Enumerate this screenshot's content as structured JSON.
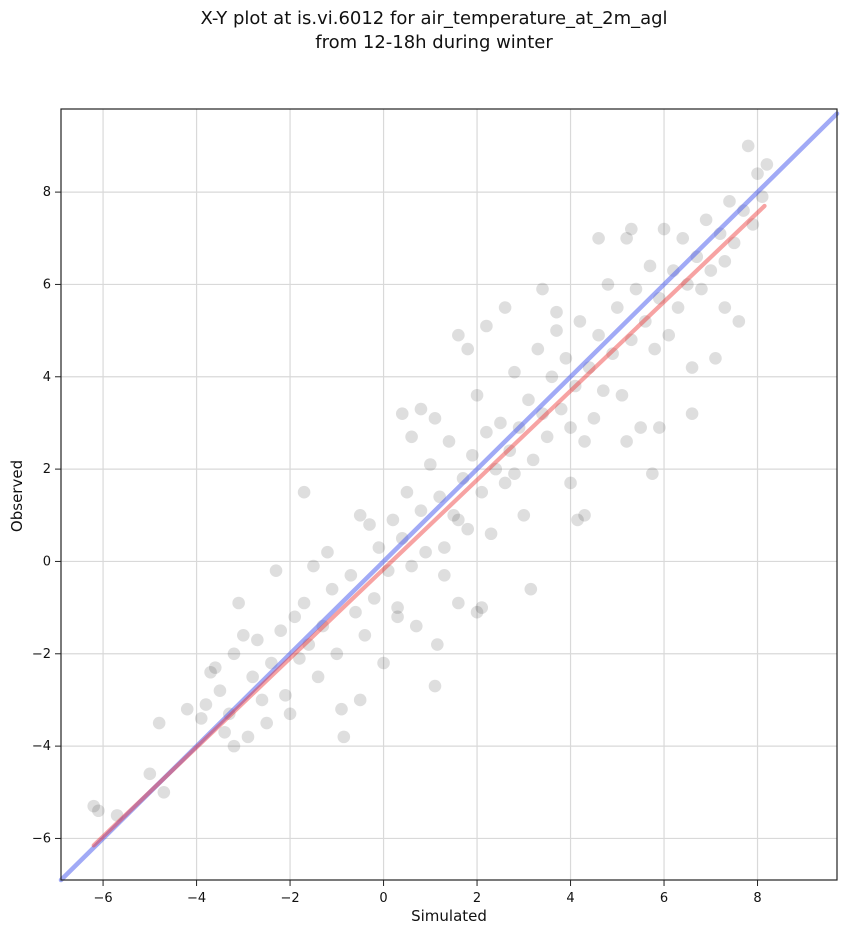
{
  "chart_data": {
    "type": "scatter",
    "title": "X-Y plot at is.vi.6012 for air_temperature_at_2m_agl",
    "subtitle": "from 12-18h during winter",
    "xlabel": "Simulated",
    "ylabel": "Observed",
    "xlim": [
      -6.9,
      9.7
    ],
    "ylim": [
      -6.9,
      9.8
    ],
    "xticks": [
      -6,
      -4,
      -2,
      0,
      2,
      4,
      6,
      8
    ],
    "yticks": [
      -6,
      -4,
      -2,
      0,
      2,
      4,
      6,
      8
    ],
    "xtick_labels": [
      "−6",
      "−4",
      "−2",
      "0",
      "2",
      "4",
      "6",
      "8"
    ],
    "ytick_labels": [
      "−6",
      "−4",
      "−2",
      "0",
      "2",
      "4",
      "6",
      "8"
    ],
    "grid": true,
    "colors": {
      "points": "#000000",
      "identity_line": "#4455ee",
      "fit_line": "#ee3333",
      "grid": "#d9d9d9"
    },
    "series": [
      {
        "kind": "points",
        "points": [
          [
            -6.2,
            -5.3
          ],
          [
            -6.1,
            -5.4
          ],
          [
            -5.7,
            -5.5
          ],
          [
            -5.0,
            -4.6
          ],
          [
            -4.8,
            -3.5
          ],
          [
            -4.7,
            -5.0
          ],
          [
            -4.2,
            -3.2
          ],
          [
            -3.9,
            -3.4
          ],
          [
            -3.8,
            -3.1
          ],
          [
            -3.7,
            -2.4
          ],
          [
            -3.6,
            -2.3
          ],
          [
            -3.5,
            -2.8
          ],
          [
            -3.4,
            -3.7
          ],
          [
            -3.3,
            -3.3
          ],
          [
            -3.2,
            -2.0
          ],
          [
            -3.2,
            -4.0
          ],
          [
            -3.1,
            -0.9
          ],
          [
            -3.0,
            -1.6
          ],
          [
            -2.9,
            -3.8
          ],
          [
            -2.8,
            -2.5
          ],
          [
            -2.7,
            -1.7
          ],
          [
            -2.6,
            -3.0
          ],
          [
            -2.5,
            -3.5
          ],
          [
            -2.4,
            -2.2
          ],
          [
            -2.3,
            -0.2
          ],
          [
            -2.2,
            -1.5
          ],
          [
            -2.1,
            -2.9
          ],
          [
            -2.0,
            -3.3
          ],
          [
            -1.9,
            -1.2
          ],
          [
            -1.8,
            -2.1
          ],
          [
            -1.7,
            -0.9
          ],
          [
            -1.6,
            -1.8
          ],
          [
            -1.5,
            -0.1
          ],
          [
            -1.4,
            -2.5
          ],
          [
            -1.3,
            -1.4
          ],
          [
            -1.2,
            0.2
          ],
          [
            -1.1,
            -0.6
          ],
          [
            -1.0,
            -2.0
          ],
          [
            -0.9,
            -3.2
          ],
          [
            -0.85,
            -3.8
          ],
          [
            -0.7,
            -0.3
          ],
          [
            -0.6,
            -1.1
          ],
          [
            -0.5,
            -3.0
          ],
          [
            -0.4,
            -1.6
          ],
          [
            -0.3,
            0.8
          ],
          [
            -0.2,
            -0.8
          ],
          [
            -0.1,
            0.3
          ],
          [
            0.0,
            -2.2
          ],
          [
            0.1,
            -0.2
          ],
          [
            0.2,
            0.9
          ],
          [
            0.3,
            -1.0
          ],
          [
            0.4,
            0.5
          ],
          [
            0.5,
            1.5
          ],
          [
            0.6,
            -0.1
          ],
          [
            0.7,
            -1.4
          ],
          [
            0.8,
            1.1
          ],
          [
            0.9,
            0.2
          ],
          [
            1.0,
            2.1
          ],
          [
            1.1,
            -2.7
          ],
          [
            1.15,
            -1.8
          ],
          [
            1.2,
            1.4
          ],
          [
            1.3,
            0.3
          ],
          [
            1.4,
            2.6
          ],
          [
            1.5,
            1.0
          ],
          [
            1.6,
            -0.9
          ],
          [
            1.7,
            1.8
          ],
          [
            1.8,
            0.7
          ],
          [
            1.9,
            2.3
          ],
          [
            2.0,
            3.6
          ],
          [
            2.1,
            1.5
          ],
          [
            2.2,
            2.8
          ],
          [
            2.3,
            0.6
          ],
          [
            2.4,
            2.0
          ],
          [
            2.5,
            3.0
          ],
          [
            2.6,
            1.7
          ],
          [
            2.7,
            2.4
          ],
          [
            2.8,
            4.1
          ],
          [
            2.9,
            2.9
          ],
          [
            3.0,
            1.0
          ],
          [
            3.1,
            3.5
          ],
          [
            3.15,
            -0.6
          ],
          [
            3.2,
            2.2
          ],
          [
            3.3,
            4.6
          ],
          [
            3.4,
            3.2
          ],
          [
            3.5,
            2.7
          ],
          [
            3.6,
            4.0
          ],
          [
            3.7,
            5.0
          ],
          [
            3.8,
            3.3
          ],
          [
            3.9,
            4.4
          ],
          [
            4.0,
            2.9
          ],
          [
            4.1,
            3.8
          ],
          [
            4.15,
            0.9
          ],
          [
            4.2,
            5.2
          ],
          [
            4.3,
            1.0
          ],
          [
            4.4,
            4.2
          ],
          [
            4.5,
            3.1
          ],
          [
            4.6,
            4.9
          ],
          [
            4.7,
            3.7
          ],
          [
            4.8,
            6.0
          ],
          [
            4.9,
            4.5
          ],
          [
            5.0,
            5.5
          ],
          [
            5.1,
            3.6
          ],
          [
            5.2,
            7.0
          ],
          [
            5.3,
            4.8
          ],
          [
            5.4,
            5.9
          ],
          [
            5.5,
            2.9
          ],
          [
            5.6,
            5.2
          ],
          [
            5.7,
            6.4
          ],
          [
            5.75,
            1.9
          ],
          [
            5.8,
            4.6
          ],
          [
            5.9,
            5.7
          ],
          [
            6.0,
            7.2
          ],
          [
            6.1,
            4.9
          ],
          [
            6.2,
            6.3
          ],
          [
            6.3,
            5.5
          ],
          [
            6.4,
            7.0
          ],
          [
            6.5,
            6.0
          ],
          [
            6.6,
            3.2
          ],
          [
            6.7,
            6.6
          ],
          [
            6.8,
            5.9
          ],
          [
            6.9,
            7.4
          ],
          [
            7.0,
            6.3
          ],
          [
            7.1,
            4.4
          ],
          [
            7.2,
            7.1
          ],
          [
            7.3,
            6.5
          ],
          [
            7.4,
            7.8
          ],
          [
            7.5,
            6.9
          ],
          [
            7.6,
            5.2
          ],
          [
            7.7,
            7.6
          ],
          [
            7.8,
            9.0
          ],
          [
            7.9,
            7.3
          ],
          [
            8.0,
            8.4
          ],
          [
            8.1,
            7.9
          ],
          [
            8.2,
            8.6
          ],
          [
            -1.7,
            1.5
          ],
          [
            -0.5,
            1.0
          ],
          [
            0.4,
            3.2
          ],
          [
            0.6,
            2.7
          ],
          [
            0.8,
            3.3
          ],
          [
            1.1,
            3.1
          ],
          [
            1.6,
            4.9
          ],
          [
            1.8,
            4.6
          ],
          [
            2.2,
            5.1
          ],
          [
            2.6,
            5.5
          ],
          [
            3.4,
            5.9
          ],
          [
            3.7,
            5.4
          ],
          [
            4.6,
            7.0
          ],
          [
            5.3,
            7.2
          ],
          [
            2.1,
            -1.0
          ],
          [
            2.0,
            -1.1
          ],
          [
            1.3,
            -0.3
          ],
          [
            0.3,
            -1.2
          ],
          [
            1.6,
            0.9
          ],
          [
            2.8,
            1.9
          ],
          [
            4.0,
            1.7
          ],
          [
            4.3,
            2.6
          ],
          [
            5.2,
            2.6
          ],
          [
            5.9,
            2.9
          ],
          [
            6.6,
            4.2
          ],
          [
            7.3,
            5.5
          ]
        ]
      },
      {
        "kind": "identity-line",
        "x": [
          -6.9,
          9.7
        ],
        "y": [
          -6.9,
          9.7
        ]
      },
      {
        "kind": "fit-line",
        "x": [
          -6.2,
          8.15
        ],
        "y": [
          -6.15,
          7.7
        ]
      }
    ]
  }
}
